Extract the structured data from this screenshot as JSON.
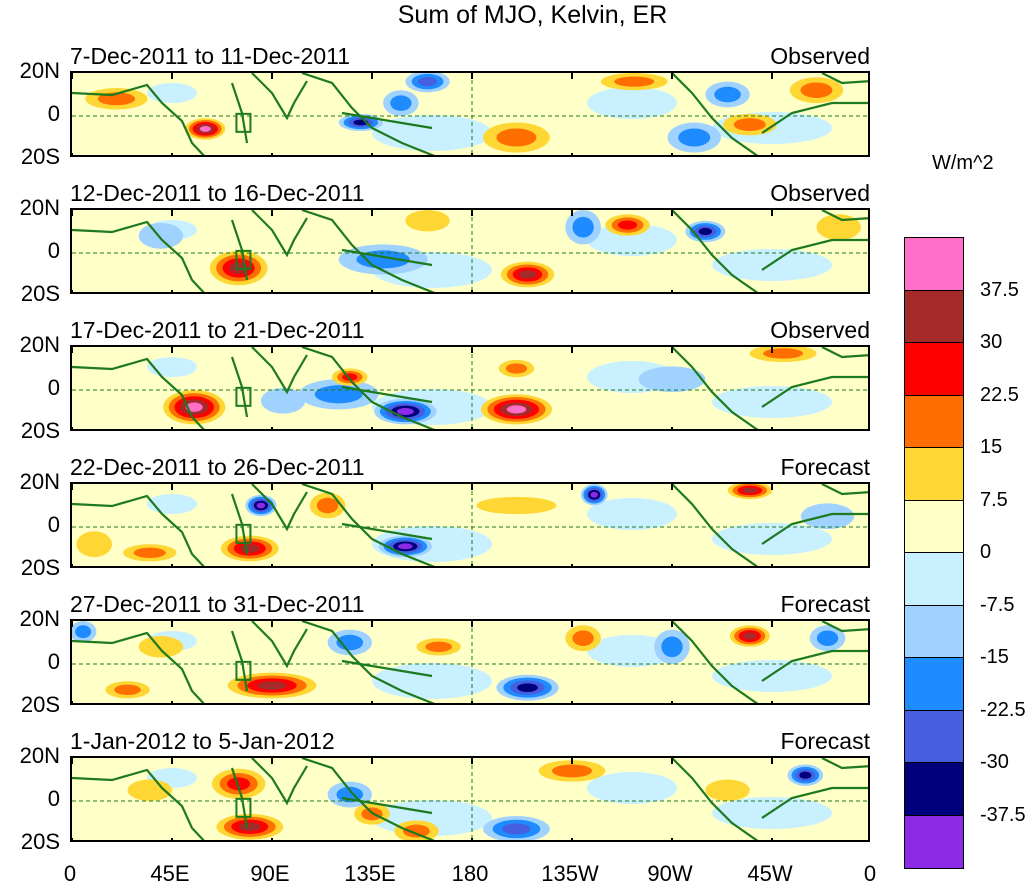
{
  "chart_data": {
    "type": "heatmap",
    "title": "Sum of MJO, Kelvin, ER",
    "colorbar_title": "W/m^2",
    "colorbar_levels": [
      "37.5",
      "30",
      "22.5",
      "15",
      "7.5",
      "0",
      "-7.5",
      "-15",
      "-22.5",
      "-30",
      "-37.5"
    ],
    "colorbar_colors": [
      "#ff6ec7",
      "#a52a2a",
      "#ff0000",
      "#ff6e00",
      "#ffd734",
      "#ffffc8",
      "#c8f0ff",
      "#a0d2ff",
      "#1e8cff",
      "#465fe0",
      "#00007d",
      "#8c2ae6"
    ],
    "x_tick_labels": [
      "0",
      "45E",
      "90E",
      "135E",
      "180",
      "135W",
      "90W",
      "45W",
      "0"
    ],
    "x_ticks_deg": [
      0,
      45,
      90,
      135,
      180,
      225,
      270,
      315,
      360
    ],
    "y_tick_labels": [
      "20N",
      "0",
      "20S"
    ],
    "y_ticks_deg": [
      20,
      0,
      -20
    ],
    "lon_range": [
      0,
      360
    ],
    "lat_range": [
      -20,
      20
    ],
    "panels": [
      {
        "period": "7-Dec-2011 to 11-Dec-2011",
        "status": "Observed",
        "anomalies": [
          {
            "lon": 20,
            "lat": 8,
            "value": 20,
            "rx": 14,
            "ry": 5
          },
          {
            "lon": 60,
            "lat": -6,
            "value": 38,
            "rx": 9,
            "ry": 5
          },
          {
            "lon": 160,
            "lat": 16,
            "value": -25,
            "rx": 10,
            "ry": 5
          },
          {
            "lon": 148,
            "lat": 6,
            "value": -15,
            "rx": 8,
            "ry": 6
          },
          {
            "lon": 130,
            "lat": -3,
            "value": -30,
            "rx": 10,
            "ry": 4
          },
          {
            "lon": 200,
            "lat": -10,
            "value": 22,
            "rx": 15,
            "ry": 7
          },
          {
            "lon": 253,
            "lat": 16,
            "value": 22,
            "rx": 15,
            "ry": 4
          },
          {
            "lon": 305,
            "lat": -4,
            "value": 15,
            "rx": 12,
            "ry": 5
          },
          {
            "lon": 335,
            "lat": 12,
            "value": 22,
            "rx": 12,
            "ry": 6
          },
          {
            "lon": 295,
            "lat": 10,
            "value": -20,
            "rx": 10,
            "ry": 6
          },
          {
            "lon": 280,
            "lat": -10,
            "value": -15,
            "rx": 12,
            "ry": 7
          }
        ]
      },
      {
        "period": "12-Dec-2011 to 16-Dec-2011",
        "status": "Observed",
        "anomalies": [
          {
            "lon": 75,
            "lat": -7,
            "value": 32,
            "rx": 13,
            "ry": 8
          },
          {
            "lon": 205,
            "lat": -10,
            "value": 30,
            "rx": 12,
            "ry": 6
          },
          {
            "lon": 250,
            "lat": 13,
            "value": 25,
            "rx": 10,
            "ry": 5
          },
          {
            "lon": 285,
            "lat": 10,
            "value": -30,
            "rx": 9,
            "ry": 5
          },
          {
            "lon": 140,
            "lat": -3,
            "value": -20,
            "rx": 20,
            "ry": 7
          },
          {
            "lon": 230,
            "lat": 12,
            "value": -18,
            "rx": 8,
            "ry": 8
          },
          {
            "lon": 160,
            "lat": 15,
            "value": 12,
            "rx": 10,
            "ry": 5
          },
          {
            "lon": 40,
            "lat": 8,
            "value": -10,
            "rx": 10,
            "ry": 6
          },
          {
            "lon": 345,
            "lat": 12,
            "value": 12,
            "rx": 10,
            "ry": 6
          }
        ]
      },
      {
        "period": "17-Dec-2011 to 21-Dec-2011",
        "status": "Observed",
        "anomalies": [
          {
            "lon": 55,
            "lat": -8,
            "value": 38,
            "rx": 14,
            "ry": 8
          },
          {
            "lon": 200,
            "lat": -9,
            "value": 38,
            "rx": 16,
            "ry": 7
          },
          {
            "lon": 150,
            "lat": -10,
            "value": -38,
            "rx": 14,
            "ry": 6
          },
          {
            "lon": 120,
            "lat": -2,
            "value": -18,
            "rx": 18,
            "ry": 7
          },
          {
            "lon": 125,
            "lat": 6,
            "value": 25,
            "rx": 8,
            "ry": 4
          },
          {
            "lon": 200,
            "lat": 10,
            "value": 20,
            "rx": 8,
            "ry": 4
          },
          {
            "lon": 320,
            "lat": 17,
            "value": 15,
            "rx": 15,
            "ry": 4
          },
          {
            "lon": 95,
            "lat": -5,
            "value": -12,
            "rx": 10,
            "ry": 6
          },
          {
            "lon": 270,
            "lat": 5,
            "value": -10,
            "rx": 15,
            "ry": 6
          }
        ]
      },
      {
        "period": "22-Dec-2011 to 26-Dec-2011",
        "status": "Forecast",
        "anomalies": [
          {
            "lon": 85,
            "lat": 10,
            "value": -38,
            "rx": 7,
            "ry": 5
          },
          {
            "lon": 150,
            "lat": -9,
            "value": -42,
            "rx": 12,
            "ry": 5
          },
          {
            "lon": 235,
            "lat": 15,
            "value": -38,
            "rx": 6,
            "ry": 5
          },
          {
            "lon": 80,
            "lat": -10,
            "value": 30,
            "rx": 13,
            "ry": 6
          },
          {
            "lon": 35,
            "lat": -12,
            "value": 20,
            "rx": 12,
            "ry": 4
          },
          {
            "lon": 305,
            "lat": 17,
            "value": 30,
            "rx": 10,
            "ry": 4
          },
          {
            "lon": 115,
            "lat": 10,
            "value": 18,
            "rx": 8,
            "ry": 6
          },
          {
            "lon": 200,
            "lat": 10,
            "value": 12,
            "rx": 18,
            "ry": 4
          },
          {
            "lon": 10,
            "lat": -8,
            "value": 12,
            "rx": 8,
            "ry": 6
          },
          {
            "lon": 340,
            "lat": 5,
            "value": -12,
            "rx": 12,
            "ry": 6
          }
        ]
      },
      {
        "period": "27-Dec-2011 to 31-Dec-2011",
        "status": "Forecast",
        "anomalies": [
          {
            "lon": 90,
            "lat": -10,
            "value": 30,
            "rx": 20,
            "ry": 6
          },
          {
            "lon": 205,
            "lat": -11,
            "value": -35,
            "rx": 14,
            "ry": 6
          },
          {
            "lon": 230,
            "lat": 12,
            "value": 22,
            "rx": 8,
            "ry": 6
          },
          {
            "lon": 305,
            "lat": 13,
            "value": 30,
            "rx": 9,
            "ry": 5
          },
          {
            "lon": 270,
            "lat": 8,
            "value": -20,
            "rx": 8,
            "ry": 8
          },
          {
            "lon": 340,
            "lat": 12,
            "value": -20,
            "rx": 8,
            "ry": 6
          },
          {
            "lon": 165,
            "lat": 8,
            "value": 20,
            "rx": 10,
            "ry": 4
          },
          {
            "lon": 125,
            "lat": 10,
            "value": -15,
            "rx": 10,
            "ry": 6
          },
          {
            "lon": 25,
            "lat": -12,
            "value": 15,
            "rx": 10,
            "ry": 4
          },
          {
            "lon": 40,
            "lat": 8,
            "value": 12,
            "rx": 10,
            "ry": 5
          },
          {
            "lon": 5,
            "lat": 15,
            "value": -15,
            "rx": 6,
            "ry": 5
          }
        ]
      },
      {
        "period": "1-Jan-2012 to 5-Jan-2012",
        "status": "Forecast",
        "anomalies": [
          {
            "lon": 75,
            "lat": 8,
            "value": 28,
            "rx": 12,
            "ry": 7
          },
          {
            "lon": 80,
            "lat": -12,
            "value": 30,
            "rx": 15,
            "ry": 6
          },
          {
            "lon": 225,
            "lat": 14,
            "value": 20,
            "rx": 15,
            "ry": 5
          },
          {
            "lon": 330,
            "lat": 12,
            "value": -30,
            "rx": 8,
            "ry": 5
          },
          {
            "lon": 200,
            "lat": -13,
            "value": -25,
            "rx": 15,
            "ry": 6
          },
          {
            "lon": 155,
            "lat": -14,
            "value": 18,
            "rx": 10,
            "ry": 5
          },
          {
            "lon": 135,
            "lat": -6,
            "value": 20,
            "rx": 8,
            "ry": 5
          },
          {
            "lon": 125,
            "lat": 3,
            "value": -15,
            "rx": 10,
            "ry": 6
          },
          {
            "lon": 35,
            "lat": 5,
            "value": 10,
            "rx": 10,
            "ry": 5
          },
          {
            "lon": 295,
            "lat": 5,
            "value": 12,
            "rx": 10,
            "ry": 5
          }
        ]
      }
    ]
  }
}
